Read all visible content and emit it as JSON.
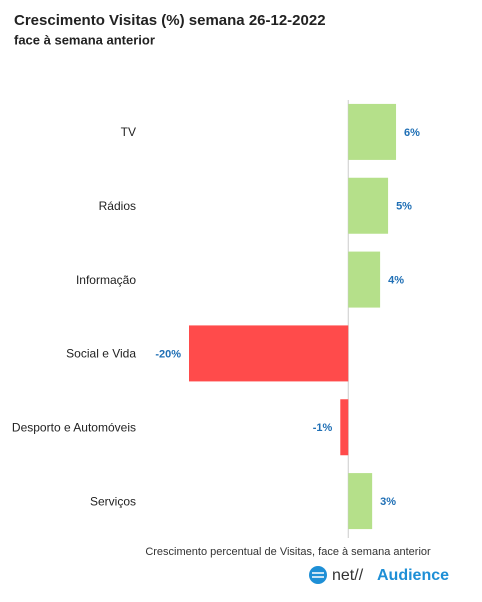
{
  "chart_data": {
    "type": "bar",
    "orientation": "horizontal",
    "title": "Crescimento Visitas (%) semana 26-12-2022",
    "subtitle": "face à semana anterior",
    "categories": [
      "TV",
      "Rádios",
      "Informação",
      "Social e Vida",
      "Desporto e Automóveis",
      "Serviços"
    ],
    "values": [
      6,
      5,
      4,
      -20,
      -1,
      3
    ],
    "value_labels": [
      "6%",
      "5%",
      "4%",
      "-20%",
      "-1%",
      "3%"
    ],
    "positive_color": "#b5e08a",
    "negative_color": "#ff4b4b",
    "xlim": [
      -20,
      7
    ],
    "x_label": "Crescimento percentual de Visitas, face à semana anterior",
    "logo": {
      "prefix": "net//",
      "name": "Audience"
    }
  }
}
